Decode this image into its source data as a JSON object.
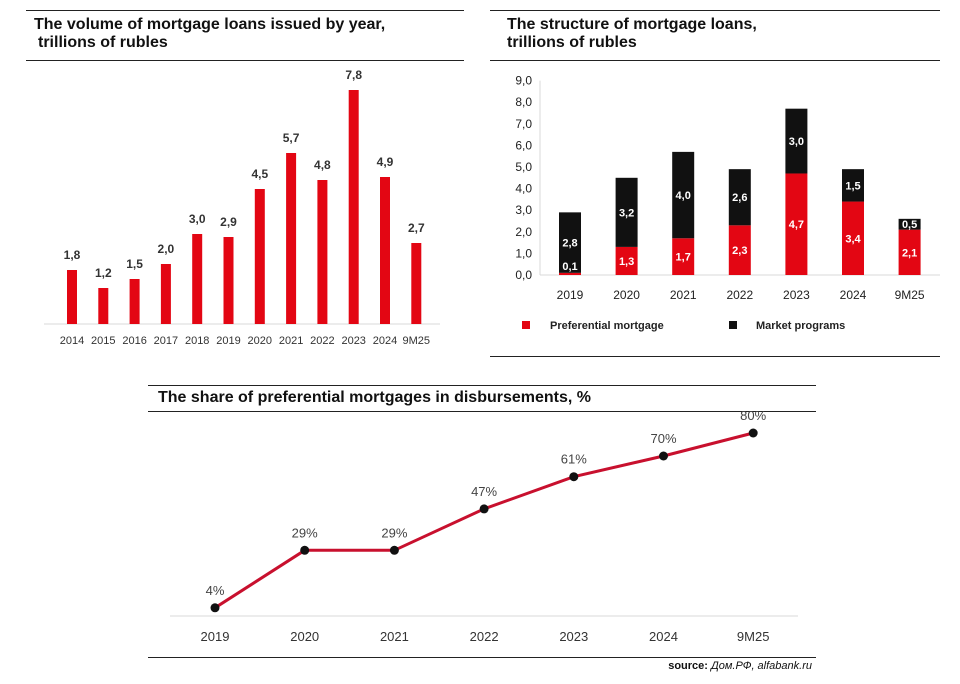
{
  "colors": {
    "red": "#e30613",
    "black": "#111111",
    "line": "#c8102e",
    "axis": "#d9d9d9"
  },
  "chart_data": [
    {
      "type": "bar",
      "title": "The volume of mortgage loans issued by year,",
      "title_line2": "trillions of rubles",
      "categories": [
        "2014",
        "2015",
        "2016",
        "2017",
        "2018",
        "2019",
        "2020",
        "2021",
        "2022",
        "2023",
        "2024",
        "9M25"
      ],
      "values": [
        1.8,
        1.2,
        1.5,
        2.0,
        3.0,
        2.9,
        4.5,
        5.7,
        4.8,
        7.8,
        4.9,
        2.7
      ],
      "labels": [
        "1,8",
        "1,2",
        "1,5",
        "2,0",
        "3,0",
        "2,9",
        "4,5",
        "5,7",
        "4,8",
        "7,8",
        "4,9",
        "2,7"
      ],
      "ylim": [
        0,
        9
      ]
    },
    {
      "type": "bar",
      "stacked": true,
      "title": "The structure of mortgage loans,",
      "title_line2": "trillions of rubles",
      "categories": [
        "2019",
        "2020",
        "2021",
        "2022",
        "2023",
        "2024",
        "9M25"
      ],
      "yticks": [
        "0,0",
        "1,0",
        "2,0",
        "3,0",
        "4,0",
        "5,0",
        "6,0",
        "7,0",
        "8,0",
        "9,0"
      ],
      "ylim": [
        0,
        9
      ],
      "series": [
        {
          "name": "Preferential mortgage",
          "values": [
            0.1,
            1.3,
            1.7,
            2.3,
            4.7,
            3.4,
            2.1
          ],
          "labels": [
            "0,1",
            "1,3",
            "1,7",
            "2,3",
            "4,7",
            "3,4",
            "2,1"
          ]
        },
        {
          "name": "Market programs",
          "values": [
            2.8,
            3.2,
            4.0,
            2.6,
            3.0,
            1.5,
            0.5
          ],
          "labels": [
            "2,8",
            "3,2",
            "4,0",
            "2,6",
            "3,0",
            "1,5",
            "0,5"
          ]
        }
      ]
    },
    {
      "type": "line",
      "title": "The share of preferential mortgages in disbursements, %",
      "categories": [
        "2019",
        "2020",
        "2021",
        "2022",
        "2023",
        "2024",
        "9M25"
      ],
      "values": [
        4,
        29,
        29,
        47,
        61,
        70,
        80
      ],
      "labels": [
        "4%",
        "29%",
        "29%",
        "47%",
        "61%",
        "70%",
        "80%"
      ],
      "ylim": [
        0,
        100
      ]
    }
  ],
  "source": {
    "label": "source:",
    "text": "Дом.РФ, alfabank.ru"
  }
}
